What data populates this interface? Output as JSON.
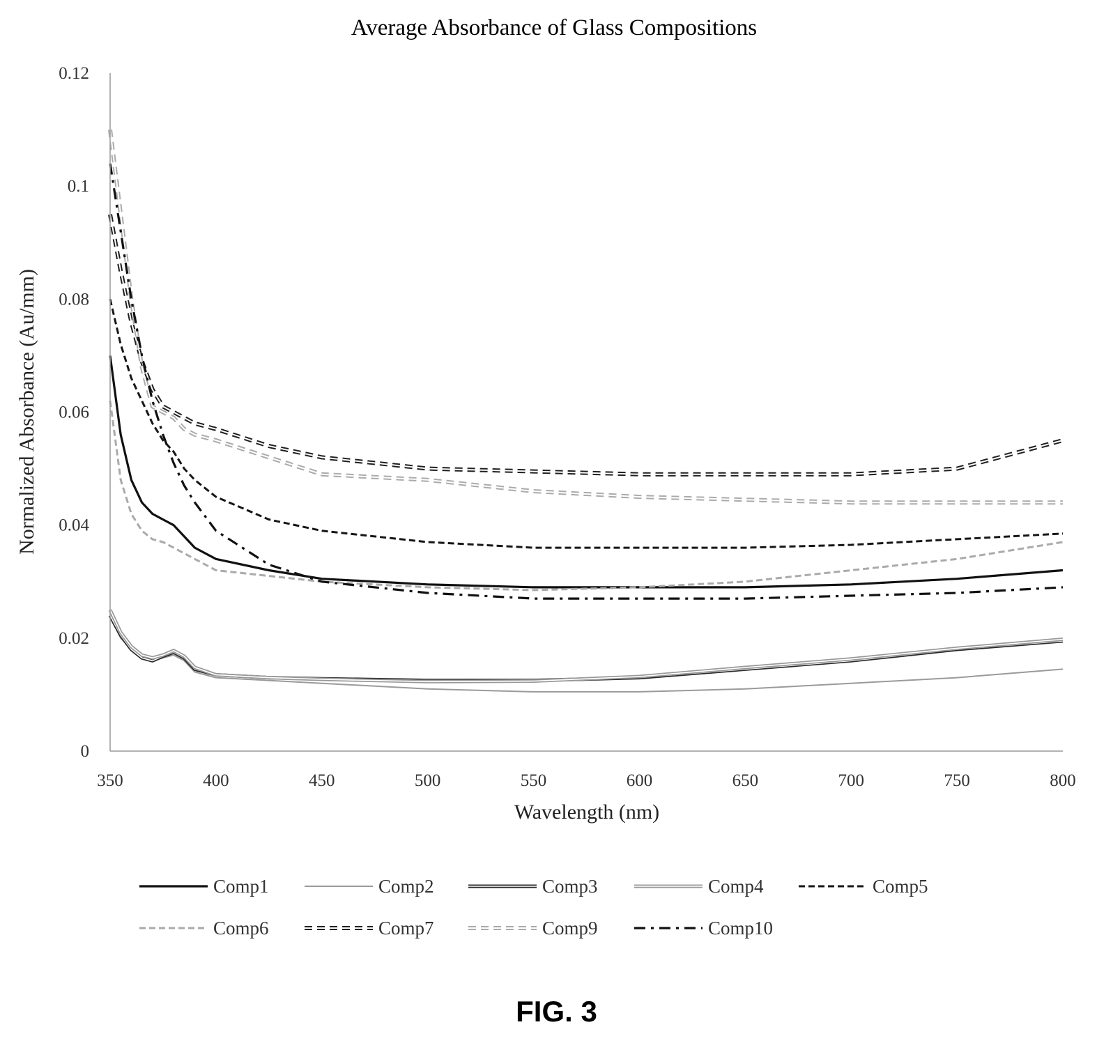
{
  "figure_label": "FIG. 3",
  "chart_data": {
    "type": "line",
    "title": "Average Absorbance of Glass Compositions",
    "xlabel": "Wavelength (nm)",
    "ylabel": "Normalized Absorbance (Au/mm)",
    "xlim": [
      350,
      800
    ],
    "ylim": [
      0,
      0.12
    ],
    "xticks": [
      350,
      400,
      450,
      500,
      550,
      600,
      650,
      700,
      750,
      800
    ],
    "xtick_labels": [
      "350",
      "400",
      "450",
      "500",
      "550",
      "600",
      "650",
      "700",
      "750",
      "800"
    ],
    "yticks": [
      0,
      0.02,
      0.04,
      0.06,
      0.08,
      0.1,
      0.12
    ],
    "ytick_labels": [
      "0",
      "0.02",
      "0.04",
      "0.06",
      "0.08",
      "0.1",
      "0.12"
    ],
    "grid": false,
    "legend_position": "bottom",
    "x": [
      350,
      355,
      360,
      365,
      370,
      375,
      380,
      385,
      390,
      400,
      425,
      450,
      500,
      550,
      600,
      650,
      700,
      750,
      800
    ],
    "series": [
      {
        "name": "Comp1",
        "color": "#111111",
        "style": "solid-thick",
        "values": [
          0.07,
          0.056,
          0.048,
          0.044,
          0.042,
          0.041,
          0.04,
          0.038,
          0.036,
          0.034,
          0.032,
          0.0305,
          0.0295,
          0.029,
          0.029,
          0.029,
          0.0295,
          0.0305,
          0.032
        ]
      },
      {
        "name": "Comp2",
        "color": "#9a9a9a",
        "style": "solid",
        "values": [
          0.024,
          0.02,
          0.018,
          0.0165,
          0.016,
          0.0165,
          0.017,
          0.016,
          0.014,
          0.013,
          0.0125,
          0.012,
          0.011,
          0.0105,
          0.0105,
          0.011,
          0.012,
          0.013,
          0.0145
        ]
      },
      {
        "name": "Comp3",
        "color": "#2a2a2a",
        "style": "double",
        "values": [
          0.024,
          0.0205,
          0.018,
          0.0165,
          0.016,
          0.0168,
          0.0175,
          0.0165,
          0.0145,
          0.0135,
          0.013,
          0.0128,
          0.0125,
          0.0125,
          0.013,
          0.0145,
          0.016,
          0.018,
          0.0195
        ]
      },
      {
        "name": "Comp4",
        "color": "#999999",
        "style": "double",
        "values": [
          0.025,
          0.021,
          0.0185,
          0.017,
          0.0165,
          0.017,
          0.0178,
          0.0168,
          0.0148,
          0.0135,
          0.013,
          0.0127,
          0.0123,
          0.0124,
          0.0132,
          0.0148,
          0.0163,
          0.0182,
          0.0198
        ]
      },
      {
        "name": "Comp5",
        "color": "#161616",
        "style": "dashed",
        "values": [
          0.08,
          0.072,
          0.066,
          0.062,
          0.058,
          0.055,
          0.053,
          0.05,
          0.048,
          0.045,
          0.041,
          0.039,
          0.037,
          0.036,
          0.036,
          0.036,
          0.0365,
          0.0375,
          0.0385
        ]
      },
      {
        "name": "Comp6",
        "color": "#aaaaaa",
        "style": "dashed",
        "values": [
          0.062,
          0.048,
          0.042,
          0.039,
          0.0375,
          0.037,
          0.036,
          0.035,
          0.034,
          0.032,
          0.031,
          0.03,
          0.029,
          0.0285,
          0.029,
          0.03,
          0.032,
          0.034,
          0.037
        ]
      },
      {
        "name": "Comp7",
        "color": "#1f1f1f",
        "style": "double-dashed",
        "values": [
          0.095,
          0.085,
          0.076,
          0.069,
          0.064,
          0.061,
          0.06,
          0.059,
          0.058,
          0.057,
          0.054,
          0.052,
          0.05,
          0.0495,
          0.049,
          0.049,
          0.049,
          0.05,
          0.055
        ]
      },
      {
        "name": "Comp9",
        "color": "#aaaaaa",
        "style": "double-dashed",
        "values": [
          0.11,
          0.095,
          0.08,
          0.068,
          0.061,
          0.06,
          0.059,
          0.057,
          0.056,
          0.055,
          0.052,
          0.049,
          0.048,
          0.046,
          0.045,
          0.0445,
          0.044,
          0.044,
          0.044
        ]
      },
      {
        "name": "Comp10",
        "color": "#111111",
        "style": "dash-dot",
        "values": [
          0.104,
          0.092,
          0.08,
          0.07,
          0.062,
          0.056,
          0.051,
          0.047,
          0.044,
          0.039,
          0.033,
          0.03,
          0.028,
          0.027,
          0.027,
          0.027,
          0.0275,
          0.028,
          0.029
        ]
      }
    ]
  }
}
